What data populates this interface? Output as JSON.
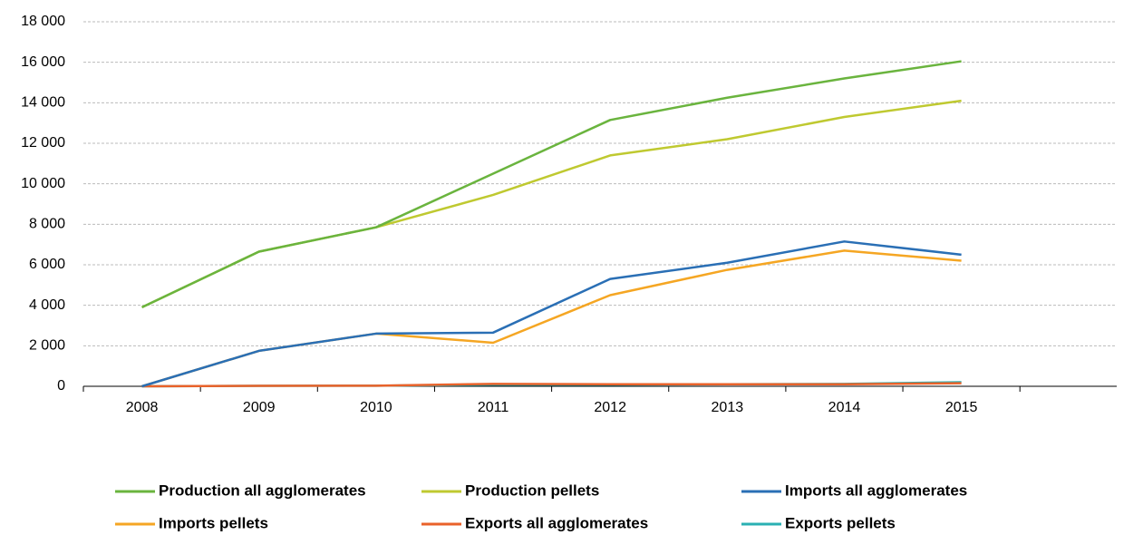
{
  "chart_data": {
    "type": "line",
    "categories": [
      "2008",
      "2009",
      "2010",
      "2011",
      "2012",
      "2013",
      "2014",
      "2015"
    ],
    "series": [
      {
        "name": "Production all agglomerates",
        "color": "#6ab43e",
        "values": [
          3900,
          6650,
          7850,
          10500,
          13150,
          14250,
          15200,
          16050
        ]
      },
      {
        "name": "Production pellets",
        "color": "#bfc930",
        "values": [
          3900,
          6650,
          7850,
          9450,
          11400,
          12200,
          13300,
          14100
        ]
      },
      {
        "name": "Imports all agglomerates",
        "color": "#2a6fb5",
        "values": [
          0,
          1750,
          2600,
          2650,
          5300,
          6100,
          7150,
          6500
        ]
      },
      {
        "name": "Imports pellets",
        "color": "#f5a623",
        "values": [
          0,
          1750,
          2600,
          2150,
          4500,
          5750,
          6700,
          6200
        ]
      },
      {
        "name": "Exports all agglomerates",
        "color": "#e9622a",
        "values": [
          0,
          20,
          30,
          120,
          100,
          100,
          100,
          150
        ]
      },
      {
        "name": "Exports pellets",
        "color": "#2ab0b3",
        "values": [
          0,
          20,
          30,
          80,
          80,
          100,
          120,
          200
        ]
      }
    ],
    "ylim": [
      0,
      18000
    ],
    "yticks": [
      0,
      {
        "value": 2000,
        "label": "2 000"
      },
      {
        "value": 4000,
        "label": "4 000"
      },
      {
        "value": 6000,
        "label": "6 000"
      },
      {
        "value": 8000,
        "label": "8 000"
      },
      {
        "value": 10000,
        "label": "10 000"
      },
      {
        "value": 12000,
        "label": "12 000"
      },
      {
        "value": 14000,
        "label": "14 000"
      },
      {
        "value": 16000,
        "label": "16 000"
      },
      {
        "value": 18000,
        "label": "18 000"
      }
    ],
    "grid": true,
    "legend": "bottom"
  }
}
